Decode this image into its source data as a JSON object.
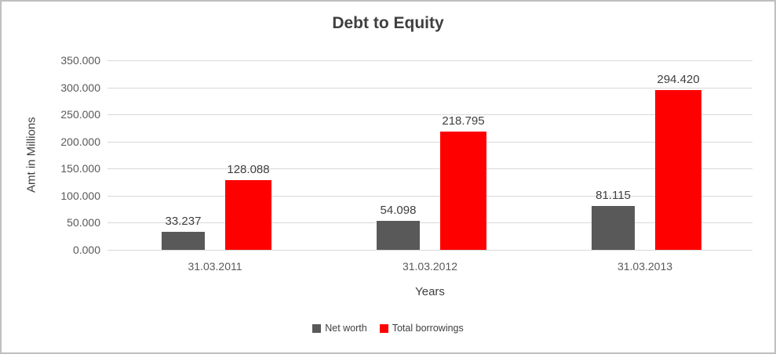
{
  "chart_data": {
    "type": "bar",
    "title": "Debt to Equity",
    "xlabel": "Years",
    "ylabel": "Amt in Millions",
    "categories": [
      "31.03.2011",
      "31.03.2012",
      "31.03.2013"
    ],
    "series": [
      {
        "name": "Net worth",
        "color": "#595959",
        "values": [
          33.237,
          54.098,
          81.115
        ],
        "labels": [
          "33.237",
          "54.098",
          "81.115"
        ]
      },
      {
        "name": "Total borrowings",
        "color": "#ff0000",
        "values": [
          128.088,
          218.795,
          294.42
        ],
        "labels": [
          "128.088",
          "218.795",
          "294.420"
        ]
      }
    ],
    "ylim": [
      0,
      350
    ],
    "ytick_step": 50,
    "ytick_labels": [
      "0.000",
      "50.000",
      "100.000",
      "150.000",
      "200.000",
      "250.000",
      "300.000",
      "350.000"
    ],
    "grid": true,
    "legend_position": "bottom",
    "gridline_color": "#d9d9d9",
    "text_color": "#3f3f3f",
    "tick_text_color": "#595959"
  }
}
